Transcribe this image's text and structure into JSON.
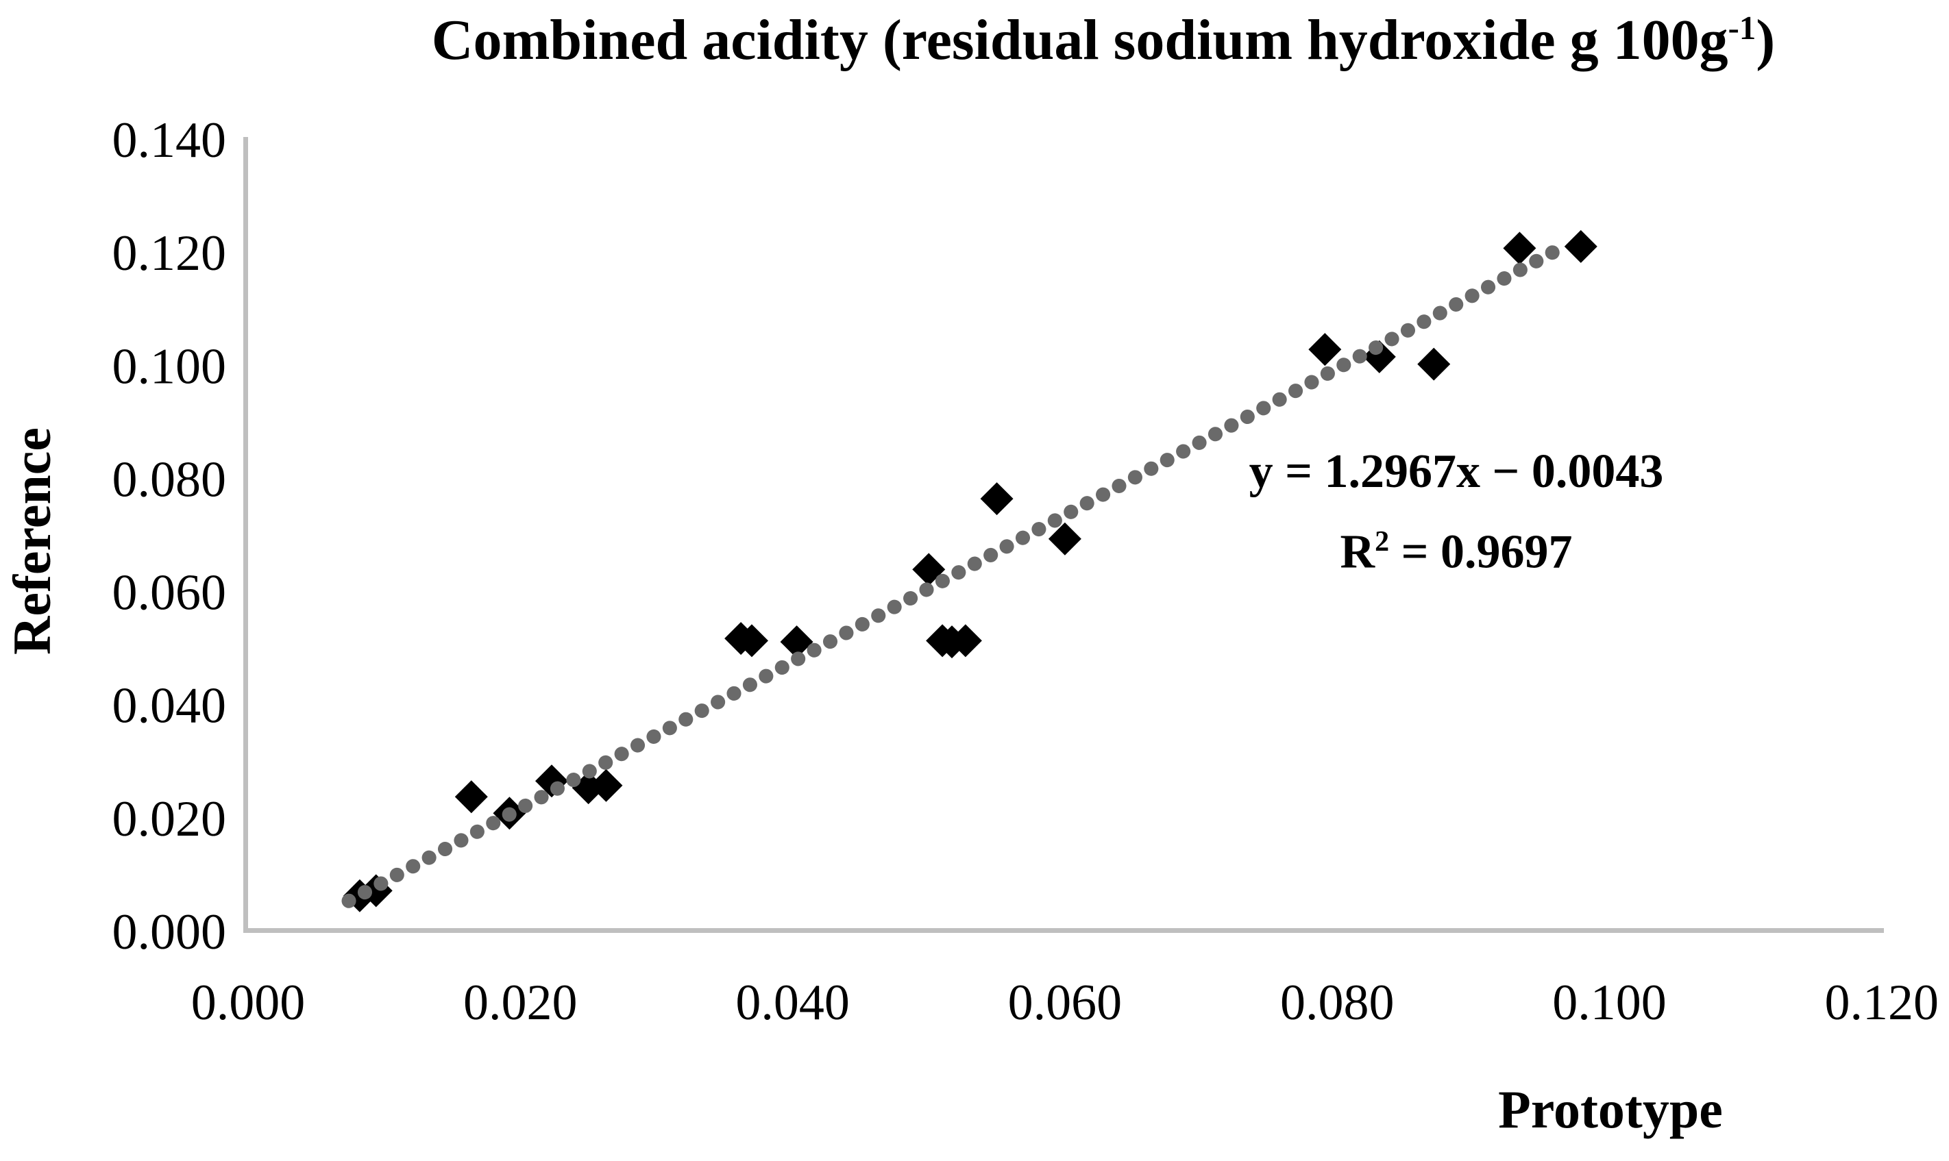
{
  "chart_data": {
    "type": "scatter",
    "title": "Combined acidity (residual sodium hydroxide g 100g-1)",
    "title_parts": {
      "main": "Combined acidity (residual sodium hydroxide g 100g",
      "superscript": "-1",
      "close": ")"
    },
    "xlabel": "Prototype",
    "ylabel": "Reference",
    "xlim": [
      0.0,
      0.12
    ],
    "ylim": [
      0.0,
      0.14
    ],
    "tick_step": 0.02,
    "x_tick_labels": [
      "0.000",
      "0.020",
      "0.040",
      "0.060",
      "0.080",
      "0.100",
      "0.120"
    ],
    "y_tick_labels": [
      "0.000",
      "0.020",
      "0.040",
      "0.060",
      "0.080",
      "0.100",
      "0.120",
      "0.140"
    ],
    "grid": false,
    "legend": false,
    "axis_color": "#bfbfbf",
    "marker": {
      "shape": "diamond",
      "color": "#000000"
    },
    "trendline": {
      "style": "dotted",
      "color": "#6a6a6a",
      "slope": 1.2967,
      "intercept": -0.0043,
      "x_start": 0.0074,
      "x_end": 0.0967,
      "equation": "y = 1.2967x − 0.0043",
      "r_squared_label": {
        "base": "R",
        "sup": "2",
        "rest": " = 0.9697"
      },
      "r_squared_value": 0.9697
    },
    "points": [
      [
        0.0082,
        0.0062
      ],
      [
        0.0094,
        0.0071
      ],
      [
        0.0164,
        0.0237
      ],
      [
        0.0192,
        0.0208
      ],
      [
        0.0223,
        0.0265
      ],
      [
        0.025,
        0.0253
      ],
      [
        0.0263,
        0.0257
      ],
      [
        0.0362,
        0.0517
      ],
      [
        0.037,
        0.0513
      ],
      [
        0.0403,
        0.0511
      ],
      [
        0.05,
        0.0639
      ],
      [
        0.051,
        0.0513
      ],
      [
        0.0517,
        0.0511
      ],
      [
        0.0527,
        0.0513
      ],
      [
        0.055,
        0.0764
      ],
      [
        0.06,
        0.0693
      ],
      [
        0.0791,
        0.1028
      ],
      [
        0.0831,
        0.1015
      ],
      [
        0.0871,
        0.1002
      ],
      [
        0.0934,
        0.1207
      ],
      [
        0.0979,
        0.121
      ]
    ]
  }
}
